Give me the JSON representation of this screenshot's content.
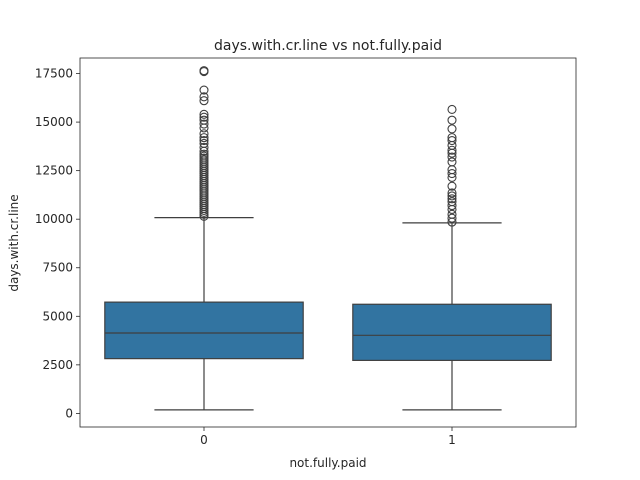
{
  "chart_data": {
    "type": "box",
    "title": "days.with.cr.line vs not.fully.paid",
    "xlabel": "not.fully.paid",
    "ylabel": "days.with.cr.line",
    "categories": [
      "0",
      "1"
    ],
    "ylim": [
      -700,
      18300
    ],
    "yticks": [
      0,
      2500,
      5000,
      7500,
      10000,
      12500,
      15000,
      17500
    ],
    "ytick_labels": [
      "0",
      "2500",
      "5000",
      "7500",
      "10000",
      "12500",
      "15000",
      "17500"
    ],
    "box_color": "#3274a1",
    "series": [
      {
        "category": "0",
        "whisker_low": 180,
        "q1": 2820,
        "median": 4140,
        "q3": 5730,
        "whisker_high": 10080,
        "outliers": [
          10150,
          10250,
          10350,
          10450,
          10550,
          10650,
          10750,
          10850,
          10950,
          11050,
          11150,
          11250,
          11350,
          11450,
          11550,
          11650,
          11750,
          11850,
          11950,
          12050,
          12150,
          12250,
          12350,
          12450,
          12550,
          12650,
          12750,
          12850,
          12950,
          13050,
          13150,
          13250,
          13350,
          13500,
          13700,
          13900,
          14050,
          14200,
          14400,
          14700,
          14900,
          15100,
          15250,
          15400,
          16100,
          16300,
          16650,
          17600,
          17650
        ]
      },
      {
        "category": "1",
        "whisker_low": 180,
        "q1": 2730,
        "median": 4020,
        "q3": 5620,
        "whisker_high": 9810,
        "outliers": [
          9850,
          10050,
          10250,
          10500,
          10700,
          10900,
          11050,
          11200,
          11350,
          11700,
          12150,
          12350,
          12550,
          12950,
          13200,
          13400,
          13550,
          13800,
          14050,
          14200,
          14650,
          15100,
          15650
        ]
      }
    ]
  }
}
